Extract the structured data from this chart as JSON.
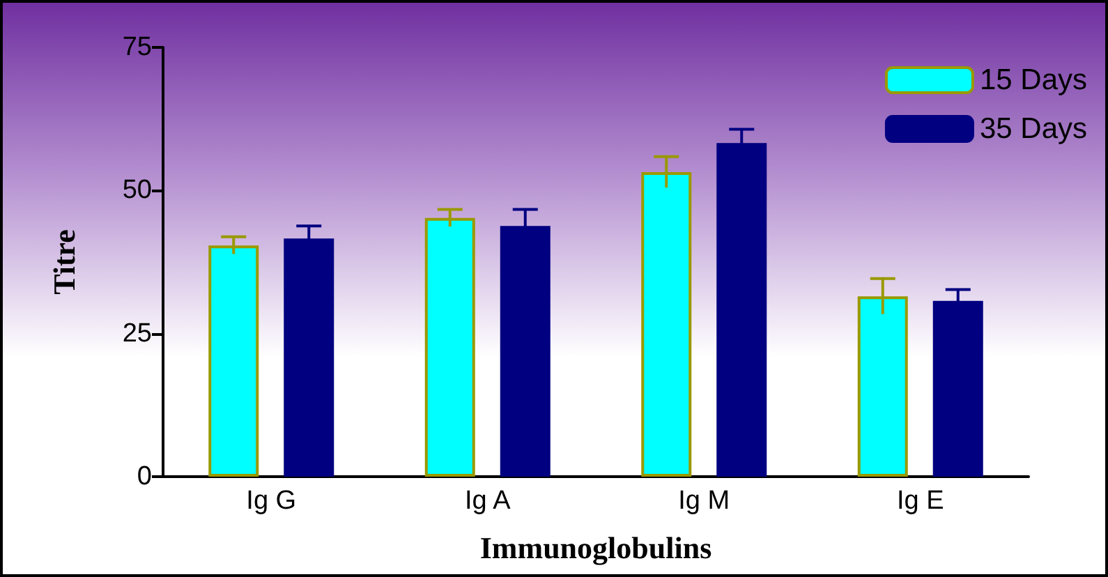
{
  "chart_data": {
    "type": "bar",
    "xlabel": "Immunoglobulins",
    "ylabel": "Titre",
    "categories": [
      "Ig G",
      "Ig A",
      "Ig M",
      "Ig E"
    ],
    "series": [
      {
        "name": "15 Days",
        "color": "#00ffff",
        "values": [
          40.4,
          45.2,
          53.2,
          31.5
        ],
        "errors": [
          1.5,
          1.5,
          2.7,
          3.1
        ]
      },
      {
        "name": "35 Days",
        "color": "#000080",
        "values": [
          41.6,
          43.8,
          58.3,
          30.7
        ],
        "errors": [
          2.2,
          2.9,
          2.4,
          2.0
        ]
      }
    ],
    "ylim": [
      0,
      75
    ],
    "yticks": [
      0,
      25,
      50,
      75
    ],
    "grid": false,
    "legend": "top right"
  }
}
